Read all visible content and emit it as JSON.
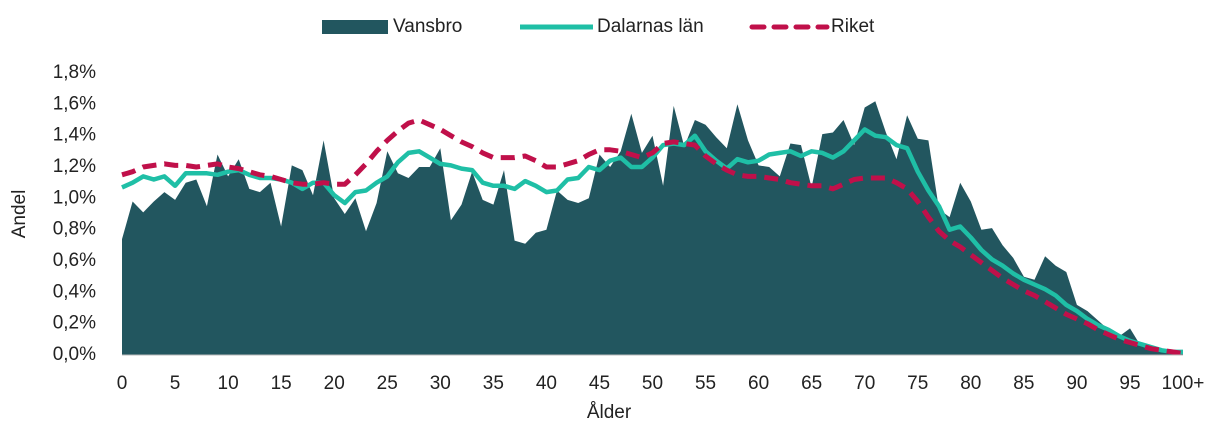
{
  "chart_data": {
    "type": "area-line",
    "xlabel": "Ålder",
    "ylabel": "Andel",
    "legend": "top",
    "categories": [
      "0",
      null,
      null,
      null,
      null,
      "5",
      null,
      null,
      null,
      null,
      "10",
      null,
      null,
      null,
      null,
      "15",
      null,
      null,
      null,
      null,
      "20",
      null,
      null,
      null,
      null,
      "25",
      null,
      null,
      null,
      null,
      "30",
      null,
      null,
      null,
      null,
      "35",
      null,
      null,
      null,
      null,
      "40",
      null,
      null,
      null,
      null,
      "45",
      null,
      null,
      null,
      null,
      "50",
      null,
      null,
      null,
      null,
      "55",
      null,
      null,
      null,
      null,
      "60",
      null,
      null,
      null,
      null,
      "65",
      null,
      null,
      null,
      null,
      "70",
      null,
      null,
      null,
      null,
      "75",
      null,
      null,
      null,
      null,
      "80",
      null,
      null,
      null,
      null,
      "85",
      null,
      null,
      null,
      null,
      "90",
      null,
      null,
      null,
      null,
      "95",
      null,
      null,
      null,
      null,
      "100+"
    ],
    "ylim": [
      0,
      1.8
    ],
    "yticks": [
      {
        "value": 0,
        "label": "0,0%"
      },
      {
        "value": 0.2,
        "label": "0,2%"
      },
      {
        "value": 0.4,
        "label": "0,4%"
      },
      {
        "value": 0.6,
        "label": "0,6%"
      },
      {
        "value": 0.8,
        "label": "0,8%"
      },
      {
        "value": 1.0,
        "label": "1,0%"
      },
      {
        "value": 1.2,
        "label": "1,2%"
      },
      {
        "value": 1.4,
        "label": "1,4%"
      },
      {
        "value": 1.6,
        "label": "1,6%"
      },
      {
        "value": 1.8,
        "label": "1,8%"
      }
    ],
    "series": [
      {
        "name": "Vansbro",
        "type": "area",
        "color": "#22565f",
        "values": [
          0.74,
          0.98,
          0.91,
          0.98,
          1.04,
          0.99,
          1.1,
          1.12,
          0.95,
          1.28,
          1.14,
          1.25,
          1.06,
          1.04,
          1.1,
          0.82,
          1.21,
          1.18,
          1.02,
          1.37,
          1.0,
          0.9,
          1.0,
          0.79,
          0.97,
          1.3,
          1.16,
          1.13,
          1.2,
          1.2,
          1.32,
          0.86,
          0.96,
          1.17,
          0.99,
          0.96,
          1.18,
          0.73,
          0.71,
          0.78,
          0.8,
          1.05,
          0.99,
          0.97,
          1.0,
          1.28,
          1.2,
          1.3,
          1.54,
          1.29,
          1.4,
          1.08,
          1.59,
          1.33,
          1.5,
          1.47,
          1.39,
          1.32,
          1.6,
          1.37,
          1.21,
          1.2,
          1.14,
          1.35,
          1.34,
          1.07,
          1.41,
          1.42,
          1.5,
          1.34,
          1.58,
          1.62,
          1.42,
          1.25,
          1.53,
          1.38,
          1.37,
          0.93,
          0.88,
          1.1,
          0.98,
          0.8,
          0.81,
          0.7,
          0.62,
          0.5,
          0.48,
          0.63,
          0.57,
          0.53,
          0.32,
          0.28,
          0.22,
          0.16,
          0.12,
          0.17,
          0.06,
          0.05,
          0.03,
          0.02,
          0.03
        ]
      },
      {
        "name": "Dalarnas län",
        "type": "line",
        "color": "#1fbfa6",
        "values": [
          1.07,
          1.1,
          1.14,
          1.12,
          1.14,
          1.08,
          1.16,
          1.16,
          1.16,
          1.15,
          1.17,
          1.18,
          1.15,
          1.13,
          1.13,
          1.12,
          1.1,
          1.06,
          1.1,
          1.1,
          1.02,
          0.97,
          1.04,
          1.05,
          1.1,
          1.14,
          1.23,
          1.29,
          1.3,
          1.26,
          1.22,
          1.21,
          1.19,
          1.18,
          1.1,
          1.08,
          1.08,
          1.06,
          1.11,
          1.08,
          1.04,
          1.05,
          1.12,
          1.13,
          1.2,
          1.18,
          1.24,
          1.26,
          1.2,
          1.2,
          1.26,
          1.34,
          1.35,
          1.34,
          1.4,
          1.3,
          1.24,
          1.19,
          1.25,
          1.23,
          1.24,
          1.28,
          1.29,
          1.3,
          1.27,
          1.3,
          1.29,
          1.26,
          1.3,
          1.37,
          1.44,
          1.4,
          1.39,
          1.34,
          1.32,
          1.17,
          1.05,
          0.95,
          0.8,
          0.82,
          0.75,
          0.67,
          0.61,
          0.57,
          0.52,
          0.48,
          0.45,
          0.42,
          0.38,
          0.32,
          0.28,
          0.23,
          0.19,
          0.16,
          0.12,
          0.09,
          0.07,
          0.05,
          0.03,
          0.02,
          0.02
        ]
      },
      {
        "name": "Riket",
        "type": "line",
        "dashed": true,
        "color": "#c0104a",
        "values": [
          1.15,
          1.17,
          1.2,
          1.21,
          1.22,
          1.21,
          1.21,
          1.2,
          1.21,
          1.22,
          1.2,
          1.19,
          1.17,
          1.15,
          1.14,
          1.12,
          1.1,
          1.09,
          1.09,
          1.1,
          1.09,
          1.09,
          1.15,
          1.22,
          1.3,
          1.37,
          1.43,
          1.48,
          1.5,
          1.47,
          1.44,
          1.4,
          1.36,
          1.33,
          1.29,
          1.26,
          1.26,
          1.26,
          1.27,
          1.24,
          1.2,
          1.2,
          1.22,
          1.24,
          1.28,
          1.31,
          1.31,
          1.3,
          1.28,
          1.26,
          1.29,
          1.35,
          1.36,
          1.35,
          1.34,
          1.27,
          1.22,
          1.18,
          1.15,
          1.14,
          1.14,
          1.13,
          1.12,
          1.1,
          1.09,
          1.08,
          1.08,
          1.06,
          1.09,
          1.12,
          1.13,
          1.13,
          1.13,
          1.1,
          1.06,
          0.98,
          0.88,
          0.79,
          0.73,
          0.69,
          0.64,
          0.59,
          0.54,
          0.49,
          0.45,
          0.41,
          0.38,
          0.34,
          0.3,
          0.26,
          0.23,
          0.2,
          0.16,
          0.13,
          0.1,
          0.08,
          0.06,
          0.04,
          0.03,
          0.02,
          0.01
        ]
      }
    ]
  }
}
